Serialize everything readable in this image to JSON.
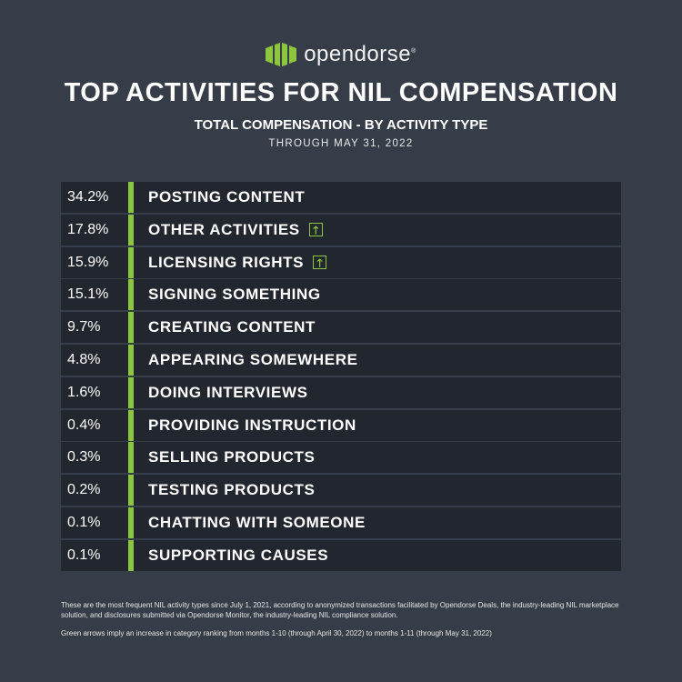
{
  "brand": {
    "name": "opendorse",
    "mark": "®",
    "color": "#8cc63f"
  },
  "title": "TOP ACTIVITIES FOR NIL COMPENSATION",
  "subtitle": "TOTAL COMPENSATION - BY ACTIVITY TYPE",
  "date": "THROUGH MAY 31, 2022",
  "chart_data": {
    "type": "table",
    "title": "TOP ACTIVITIES FOR NIL COMPENSATION",
    "rows": [
      {
        "pct": "34.2%",
        "value": 34.2,
        "label": "POSTING CONTENT",
        "up": false
      },
      {
        "pct": "17.8%",
        "value": 17.8,
        "label": "OTHER ACTIVITIES",
        "up": true
      },
      {
        "pct": "15.9%",
        "value": 15.9,
        "label": "LICENSING RIGHTS",
        "up": true
      },
      {
        "pct": "15.1%",
        "value": 15.1,
        "label": "SIGNING SOMETHING",
        "up": false
      },
      {
        "pct": "9.7%",
        "value": 9.7,
        "label": "CREATING CONTENT",
        "up": false
      },
      {
        "pct": "4.8%",
        "value": 4.8,
        "label": "APPEARING SOMEWHERE",
        "up": false
      },
      {
        "pct": "1.6%",
        "value": 1.6,
        "label": "DOING INTERVIEWS",
        "up": false
      },
      {
        "pct": "0.4%",
        "value": 0.4,
        "label": "PROVIDING INSTRUCTION",
        "up": false
      },
      {
        "pct": "0.3%",
        "value": 0.3,
        "label": "SELLING PRODUCTS",
        "up": false
      },
      {
        "pct": "0.2%",
        "value": 0.2,
        "label": "TESTING PRODUCTS",
        "up": false
      },
      {
        "pct": "0.1%",
        "value": 0.1,
        "label": "CHATTING WITH SOMEONE",
        "up": false
      },
      {
        "pct": "0.1%",
        "value": 0.1,
        "label": "SUPPORTING CAUSES",
        "up": false
      }
    ]
  },
  "arrow_glyph": "🡑",
  "footnotes": [
    "These are the most frequent NIL activity types since July 1, 2021, according to anonymized transactions facilitated by Opendorse Deals, the industry-leading NIL marketplace solution, and disclosures submitted via Opendorse Monitor, the industry-leading NIL compliance solution.",
    "Green arrows imply an increase in category ranking from months 1-10 (through April 30, 2022) to months 1-11 (through May 31, 2022)"
  ]
}
